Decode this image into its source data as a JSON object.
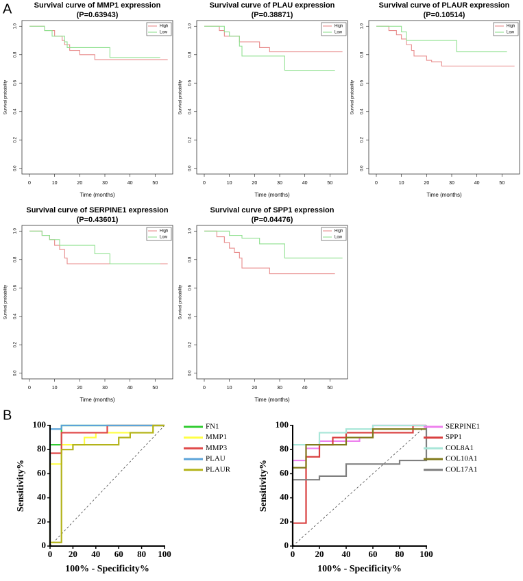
{
  "panels": {
    "a": "A",
    "b": "B"
  },
  "chart_data": [
    {
      "type": "step",
      "title": "Survival curve of MMP1 expression",
      "subtitle": "(P=0.63943)",
      "xlabel": "Time (months)",
      "ylabel": "Survival probability",
      "xlim": [
        -3,
        57
      ],
      "ylim": [
        -0.04,
        1.04
      ],
      "xticks": [
        0,
        10,
        20,
        30,
        40,
        50
      ],
      "yticks": [
        {
          "value": 0,
          "label": "0.0"
        },
        {
          "value": 0.2,
          "label": "0.2"
        },
        {
          "value": 0.4,
          "label": "0.4"
        },
        {
          "value": 0.6,
          "label": "0.6"
        },
        {
          "value": 0.8,
          "label": "0.8"
        },
        {
          "value": 1,
          "label": "1.0"
        }
      ],
      "legend": "topright",
      "series": [
        {
          "name": "High",
          "color": "#e88a8a",
          "x": [
            0,
            6,
            10,
            13,
            14,
            16,
            20,
            26,
            55
          ],
          "values": [
            1,
            0.97,
            0.93,
            0.9,
            0.87,
            0.83,
            0.8,
            0.765,
            0.765
          ]
        },
        {
          "name": "Low",
          "color": "#8fe08f",
          "x": [
            0,
            6,
            9,
            14,
            15,
            32,
            52
          ],
          "values": [
            1,
            0.97,
            0.93,
            0.89,
            0.85,
            0.78,
            0.78
          ]
        }
      ]
    },
    {
      "type": "step",
      "title": "Survival curve of PLAU expression",
      "subtitle": "(P=0.38871)",
      "xlabel": "Time (months)",
      "ylabel": "Survival probability",
      "xlim": [
        -3,
        57
      ],
      "ylim": [
        -0.04,
        1.04
      ],
      "xticks": [
        0,
        10,
        20,
        30,
        40,
        50
      ],
      "yticks": [
        {
          "value": 0,
          "label": "0.0"
        },
        {
          "value": 0.2,
          "label": "0.2"
        },
        {
          "value": 0.4,
          "label": "0.4"
        },
        {
          "value": 0.6,
          "label": "0.6"
        },
        {
          "value": 0.8,
          "label": "0.8"
        },
        {
          "value": 1,
          "label": "1.0"
        }
      ],
      "legend": "topright",
      "series": [
        {
          "name": "High",
          "color": "#e88a8a",
          "x": [
            0,
            6,
            8,
            14,
            22,
            26,
            55
          ],
          "values": [
            1,
            0.97,
            0.93,
            0.89,
            0.85,
            0.82,
            0.82
          ]
        },
        {
          "name": "Low",
          "color": "#8fe08f",
          "x": [
            0,
            8,
            10,
            14,
            15,
            32,
            52
          ],
          "values": [
            1,
            0.96,
            0.93,
            0.86,
            0.79,
            0.69,
            0.69
          ]
        }
      ]
    },
    {
      "type": "step",
      "title": "Survival curve of PLAUR expression",
      "subtitle": "(P=0.10514)",
      "xlabel": "Time (months)",
      "ylabel": "Survival probability",
      "xlim": [
        -3,
        57
      ],
      "ylim": [
        -0.04,
        1.04
      ],
      "xticks": [
        0,
        10,
        20,
        30,
        40,
        50
      ],
      "yticks": [
        {
          "value": 0,
          "label": "0.0"
        },
        {
          "value": 0.2,
          "label": "0.2"
        },
        {
          "value": 0.4,
          "label": "0.4"
        },
        {
          "value": 0.6,
          "label": "0.6"
        },
        {
          "value": 0.8,
          "label": "0.8"
        },
        {
          "value": 1,
          "label": "1.0"
        }
      ],
      "legend": "topright",
      "series": [
        {
          "name": "High",
          "color": "#e88a8a",
          "x": [
            0,
            5,
            8,
            10,
            12,
            14,
            15,
            20,
            22,
            26,
            55
          ],
          "values": [
            1,
            0.97,
            0.94,
            0.91,
            0.87,
            0.83,
            0.79,
            0.76,
            0.75,
            0.72,
            0.72
          ]
        },
        {
          "name": "Low",
          "color": "#8fe08f",
          "x": [
            0,
            10,
            12,
            32,
            52
          ],
          "values": [
            1,
            0.96,
            0.9,
            0.82,
            0.82
          ]
        }
      ]
    },
    {
      "type": "step",
      "title": "Survival curve of SERPINE1 expression",
      "subtitle": "(P=0.43601)",
      "xlabel": "Time (months)",
      "ylabel": "Survival probability",
      "xlim": [
        -3,
        57
      ],
      "ylim": [
        -0.04,
        1.04
      ],
      "xticks": [
        0,
        10,
        20,
        30,
        40,
        50
      ],
      "yticks": [
        {
          "value": 0,
          "label": "0.0"
        },
        {
          "value": 0.2,
          "label": "0.2"
        },
        {
          "value": 0.4,
          "label": "0.4"
        },
        {
          "value": 0.6,
          "label": "0.6"
        },
        {
          "value": 0.8,
          "label": "0.8"
        },
        {
          "value": 1,
          "label": "1.0"
        }
      ],
      "legend": "topright",
      "series": [
        {
          "name": "High",
          "color": "#e88a8a",
          "x": [
            0,
            5,
            8,
            10,
            12,
            14,
            15,
            55
          ],
          "values": [
            1,
            0.97,
            0.94,
            0.9,
            0.87,
            0.81,
            0.77,
            0.77
          ]
        },
        {
          "name": "Low",
          "color": "#8fe08f",
          "x": [
            0,
            5,
            8,
            12,
            26,
            32,
            52
          ],
          "values": [
            1,
            0.97,
            0.94,
            0.9,
            0.84,
            0.77,
            0.77
          ]
        }
      ]
    },
    {
      "type": "step",
      "title": "Survival curve of SPP1 expression",
      "subtitle": "(P=0.04476)",
      "xlabel": "Time (months)",
      "ylabel": "Survival probability",
      "xlim": [
        -3,
        57
      ],
      "ylim": [
        -0.04,
        1.04
      ],
      "xticks": [
        0,
        10,
        20,
        30,
        40,
        50
      ],
      "yticks": [
        {
          "value": 0,
          "label": "0.0"
        },
        {
          "value": 0.2,
          "label": "0.2"
        },
        {
          "value": 0.4,
          "label": "0.4"
        },
        {
          "value": 0.6,
          "label": "0.6"
        },
        {
          "value": 0.8,
          "label": "0.8"
        },
        {
          "value": 1,
          "label": "1.0"
        }
      ],
      "legend": "topright",
      "series": [
        {
          "name": "High",
          "color": "#e88a8a",
          "x": [
            0,
            5,
            8,
            10,
            12,
            14,
            15,
            26,
            52
          ],
          "values": [
            1,
            0.96,
            0.92,
            0.88,
            0.85,
            0.81,
            0.74,
            0.7,
            0.7
          ]
        },
        {
          "name": "Low",
          "color": "#8fe08f",
          "x": [
            0,
            10,
            15,
            22,
            32,
            55
          ],
          "values": [
            1,
            0.97,
            0.95,
            0.91,
            0.81,
            0.81
          ]
        }
      ]
    },
    {
      "type": "line",
      "xlabel": "100% - Specificity%",
      "ylabel": "Sensitivity%",
      "xlim": [
        0,
        100
      ],
      "ylim": [
        0,
        100
      ],
      "xticks": [
        0,
        20,
        40,
        60,
        80,
        100
      ],
      "yticks": [
        0,
        20,
        40,
        60,
        80,
        100
      ],
      "diagonal": true,
      "legend": "right",
      "series": [
        {
          "name": "FN1",
          "color": "#33cc33",
          "x": [
            0,
            0,
            10,
            10,
            100
          ],
          "values": [
            0,
            84,
            84,
            100,
            100
          ]
        },
        {
          "name": "MMP1",
          "color": "#ffff44",
          "x": [
            0,
            0,
            10,
            10,
            30,
            30,
            40,
            40,
            90,
            90,
            100
          ],
          "values": [
            0,
            68,
            68,
            84,
            84,
            90,
            90,
            94,
            94,
            100,
            100
          ]
        },
        {
          "name": "MMP3",
          "color": "#e04848",
          "x": [
            0,
            0,
            10,
            10,
            50,
            50,
            100
          ],
          "values": [
            0,
            77,
            77,
            94,
            94,
            100,
            100
          ]
        },
        {
          "name": "PLAU",
          "color": "#5ba3d9",
          "x": [
            0,
            0,
            10,
            10,
            100
          ],
          "values": [
            0,
            97,
            97,
            100,
            100
          ]
        },
        {
          "name": "PLAUR",
          "color": "#b3b31a",
          "x": [
            0,
            10,
            10,
            20,
            20,
            60,
            60,
            70,
            70,
            90,
            90,
            100
          ],
          "values": [
            3,
            3,
            80,
            80,
            84,
            84,
            90,
            90,
            94,
            94,
            100,
            100
          ]
        }
      ]
    },
    {
      "type": "line",
      "xlabel": "100% - Specificity%",
      "ylabel": "Sensitivity%",
      "xlim": [
        0,
        100
      ],
      "ylim": [
        0,
        100
      ],
      "xticks": [
        0,
        20,
        40,
        60,
        80,
        100
      ],
      "yticks": [
        0,
        20,
        40,
        60,
        80,
        100
      ],
      "diagonal": true,
      "legend": "right",
      "series": [
        {
          "name": "SERPINE1",
          "color": "#ee82ee",
          "x": [
            0,
            0,
            10,
            10,
            20,
            20,
            50,
            50,
            60,
            60,
            100
          ],
          "values": [
            0,
            71,
            71,
            81,
            81,
            87,
            87,
            90,
            90,
            100,
            100
          ]
        },
        {
          "name": "SPP1",
          "color": "#d94040",
          "x": [
            0,
            10,
            10,
            20,
            20,
            30,
            30,
            40,
            40,
            90,
            90,
            100
          ],
          "values": [
            19,
            19,
            74,
            74,
            84,
            84,
            90,
            90,
            94,
            94,
            100,
            100
          ]
        },
        {
          "name": "COL8A1",
          "color": "#a8e6d8",
          "x": [
            0,
            0,
            20,
            20,
            40,
            40,
            60,
            60,
            100
          ],
          "values": [
            0,
            84,
            84,
            94,
            94,
            97,
            97,
            100,
            100
          ]
        },
        {
          "name": "COL10A1",
          "color": "#807a1a",
          "x": [
            0,
            0,
            10,
            10,
            40,
            40,
            60,
            60,
            100
          ],
          "values": [
            0,
            65,
            65,
            84,
            84,
            90,
            90,
            97,
            97
          ]
        },
        {
          "name": "COL17A1",
          "color": "#7f7f7f",
          "x": [
            0,
            0,
            20,
            20,
            40,
            40,
            80,
            80,
            100,
            100
          ],
          "values": [
            0,
            55,
            55,
            58,
            58,
            68,
            68,
            71,
            71,
            100
          ]
        }
      ]
    }
  ]
}
